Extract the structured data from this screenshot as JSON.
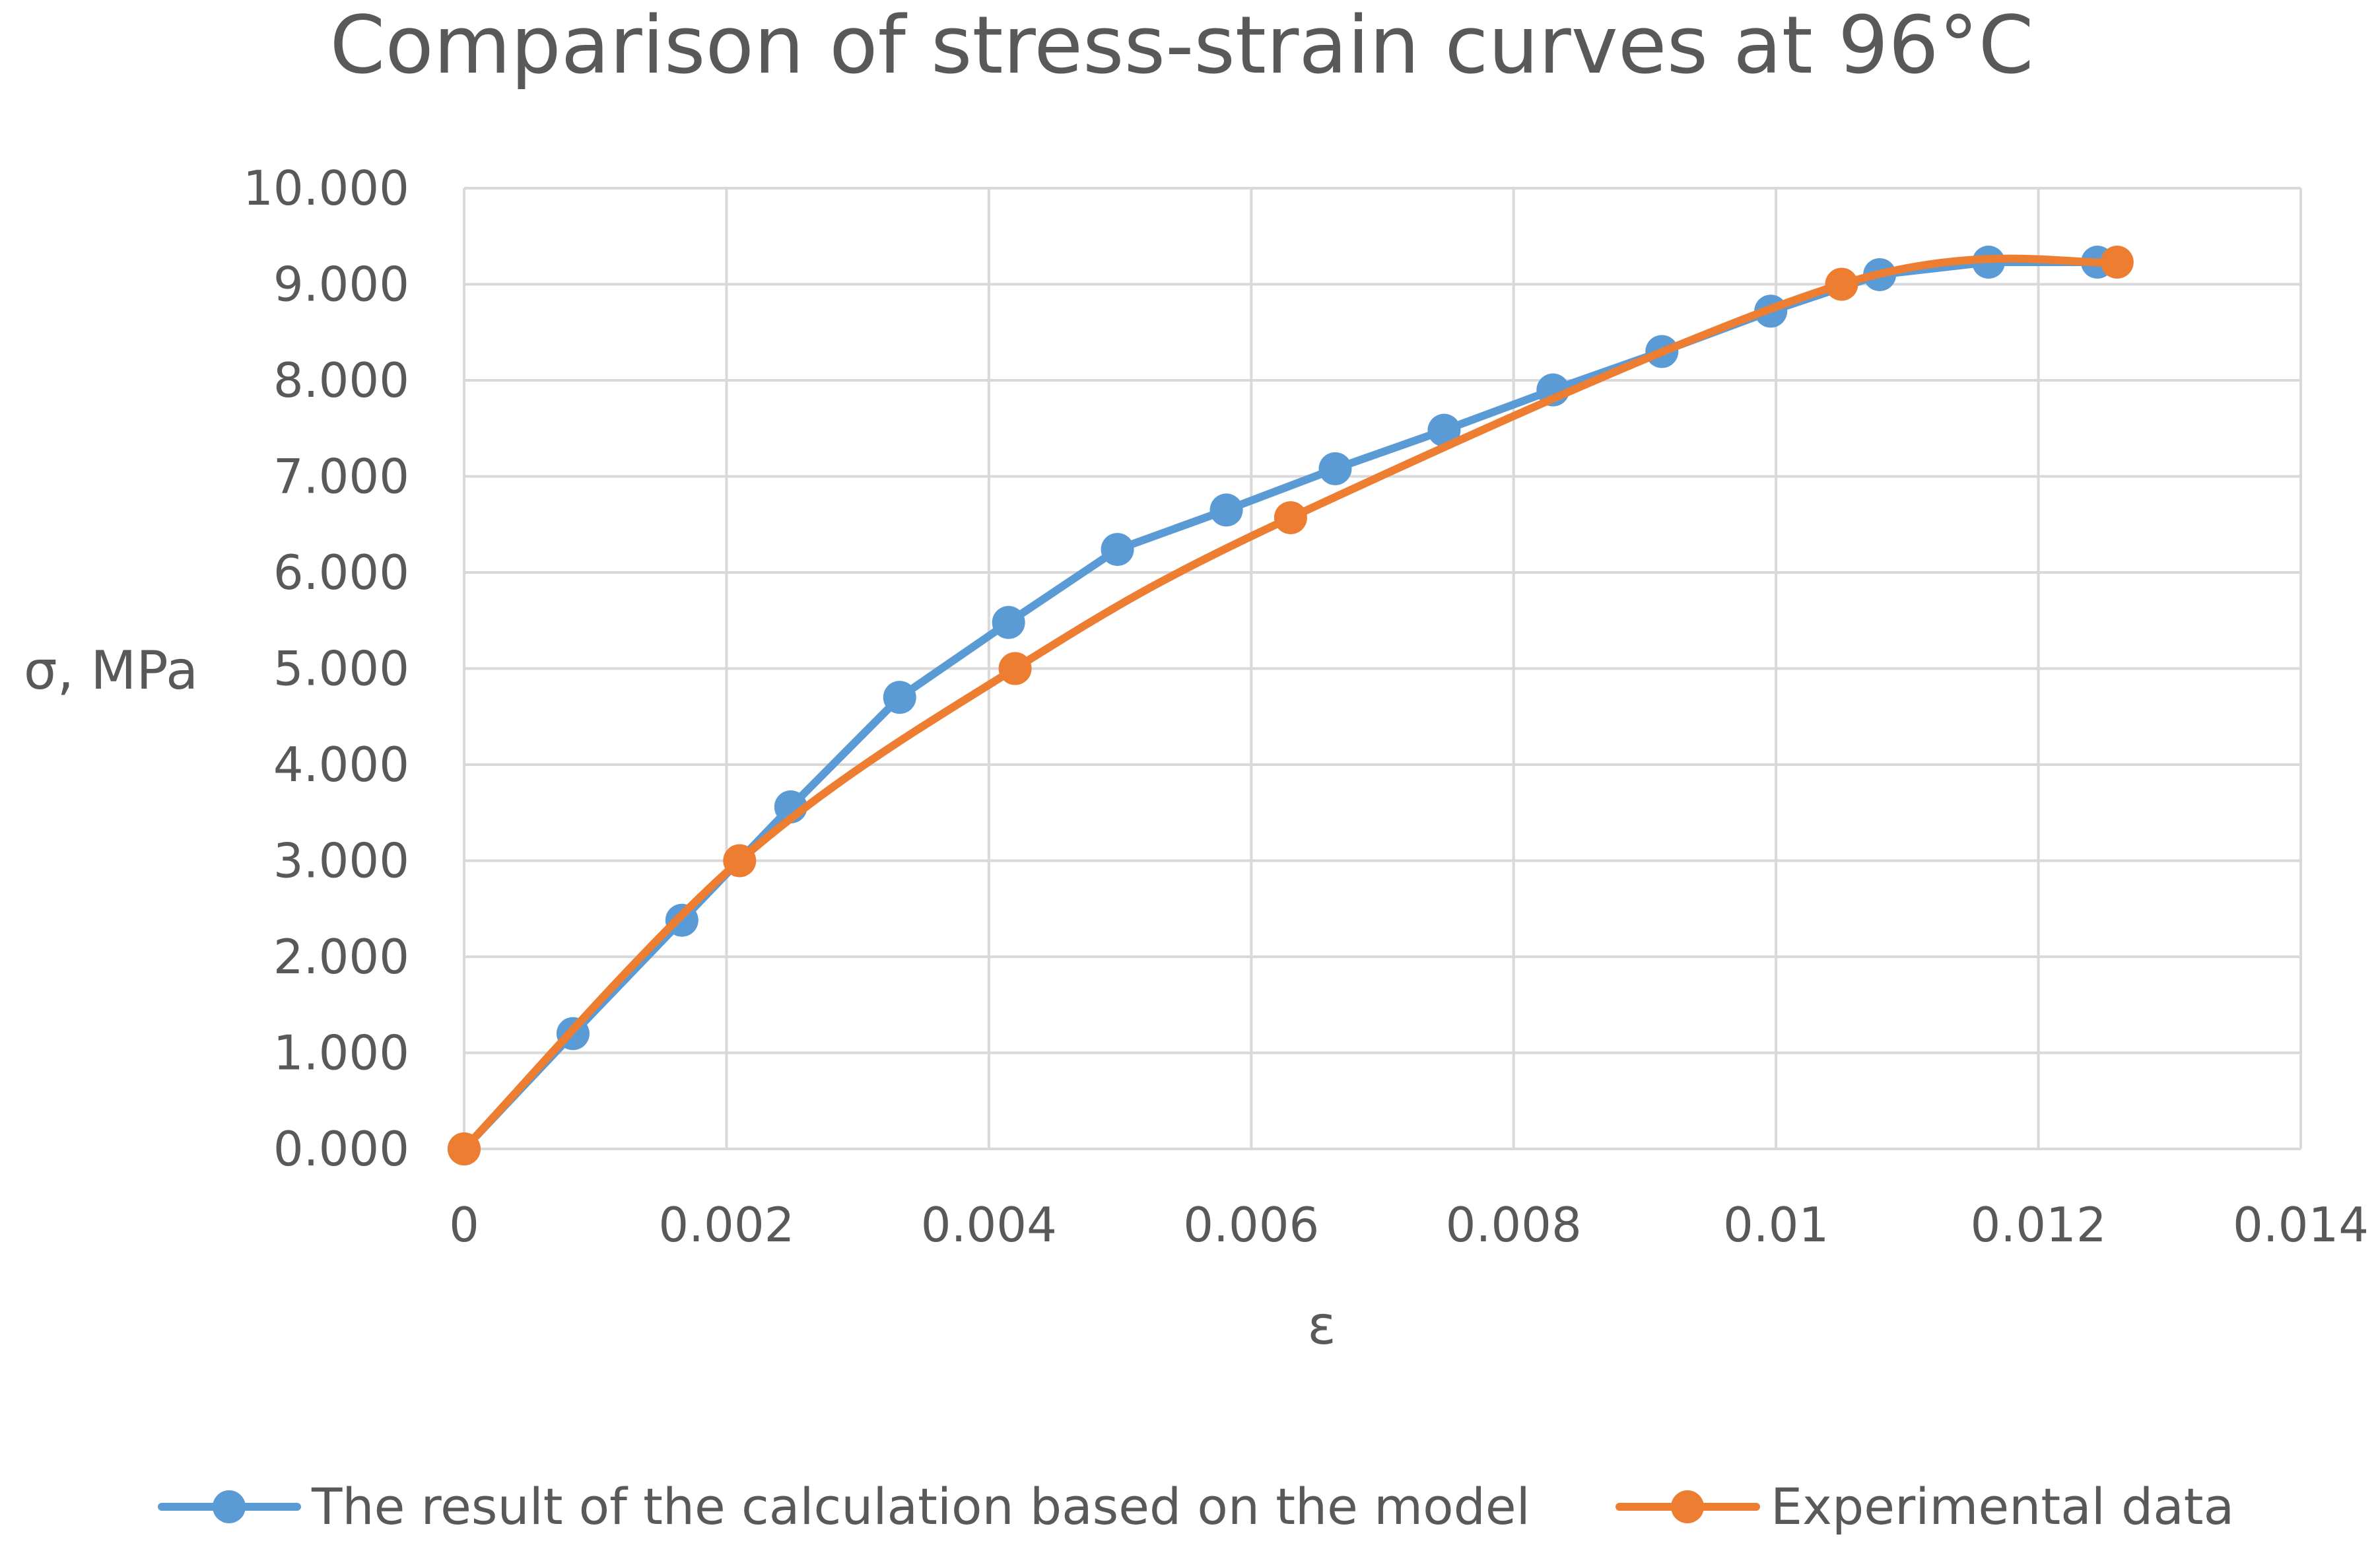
{
  "chart_data": {
    "type": "line",
    "title": "Comparison of stress-strain curves at 96°C",
    "xlabel": "ε",
    "ylabel": "σ, MPa",
    "xlim": [
      0,
      0.014
    ],
    "ylim": [
      0,
      10
    ],
    "x_ticks": [
      "0",
      "0.002",
      "0.004",
      "0.006",
      "0.008",
      "0.01",
      "0.012",
      "0.014"
    ],
    "y_ticks": [
      "0.000",
      "1.000",
      "2.000",
      "3.000",
      "4.000",
      "5.000",
      "6.000",
      "7.000",
      "8.000",
      "9.000",
      "10.000"
    ],
    "grid": true,
    "legend_position": "bottom",
    "series": [
      {
        "name": "The result of the calculation based on the model",
        "color": "#5b9bd5",
        "smooth": false,
        "x": [
          0,
          0.00083,
          0.00166,
          0.00249,
          0.00332,
          0.00415,
          0.00498,
          0.00581,
          0.00664,
          0.00747,
          0.0083,
          0.00913,
          0.00996,
          0.01079,
          0.01162,
          0.01245
        ],
        "values": [
          0,
          1.2,
          2.38,
          3.56,
          4.7,
          5.48,
          6.24,
          6.65,
          7.08,
          7.48,
          7.9,
          8.3,
          8.72,
          9.1,
          9.23,
          9.23
        ]
      },
      {
        "name": "Experimental data",
        "color": "#ed7d31",
        "smooth": true,
        "x": [
          0,
          0.0021,
          0.0042,
          0.0063,
          0.0105,
          0.0126
        ],
        "values": [
          0,
          3.0,
          5.0,
          6.57,
          9.0,
          9.23
        ]
      }
    ]
  }
}
